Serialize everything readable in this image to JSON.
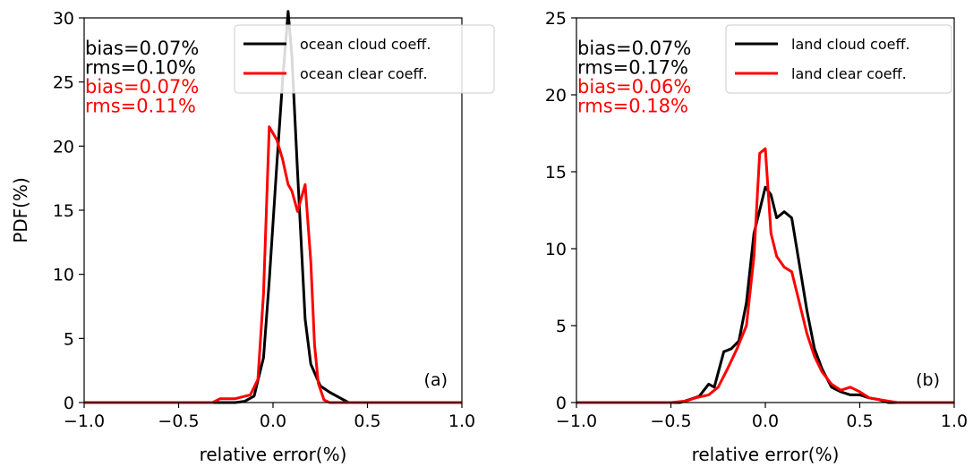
{
  "chart_data": [
    {
      "type": "line",
      "panel_label": "(a)",
      "xlabel": "relative error(%)",
      "ylabel": "PDF(%)",
      "xlim": [
        -1.0,
        1.0
      ],
      "ylim": [
        0,
        30
      ],
      "xticks": [
        "−1.0",
        "−0.5",
        "0.0",
        "0.5",
        "1.0"
      ],
      "yticks": [
        "0",
        "5",
        "10",
        "15",
        "20",
        "25",
        "30"
      ],
      "grid": false,
      "legend_position": "top-right",
      "annotations": [
        {
          "text": "bias=0.07%",
          "color": "#000000"
        },
        {
          "text": "rms=0.10%",
          "color": "#000000"
        },
        {
          "text": "bias=0.07%",
          "color": "#ff0000"
        },
        {
          "text": "rms=0.11%",
          "color": "#ff0000"
        }
      ],
      "series": [
        {
          "name": "ocean cloud coeff.",
          "color": "#000000",
          "x": [
            -1.0,
            -0.3,
            -0.2,
            -0.15,
            -0.1,
            -0.05,
            -0.02,
            0.02,
            0.05,
            0.08,
            0.1,
            0.13,
            0.17,
            0.2,
            0.25,
            0.3,
            0.35,
            0.4,
            1.0
          ],
          "y": [
            0.0,
            0.0,
            0.0,
            0.1,
            0.5,
            3.5,
            9.5,
            18.5,
            25.0,
            30.5,
            27.0,
            18.0,
            6.5,
            3.0,
            1.3,
            0.8,
            0.4,
            0.0,
            0.0
          ]
        },
        {
          "name": "ocean clear coeff.",
          "color": "#ff0000",
          "x": [
            -1.0,
            -0.32,
            -0.28,
            -0.2,
            -0.12,
            -0.08,
            -0.05,
            -0.02,
            0.02,
            0.05,
            0.08,
            0.1,
            0.13,
            0.17,
            0.2,
            0.22,
            0.24,
            0.27,
            0.3,
            1.0
          ],
          "y": [
            0.0,
            0.0,
            0.3,
            0.3,
            0.6,
            1.8,
            8.5,
            21.5,
            20.5,
            19.0,
            17.0,
            16.5,
            14.9,
            17.0,
            11.0,
            4.5,
            1.5,
            0.2,
            0.0,
            0.0
          ]
        }
      ]
    },
    {
      "type": "line",
      "panel_label": "(b)",
      "xlabel": "relative error(%)",
      "ylabel": "",
      "xlim": [
        -1.0,
        1.0
      ],
      "ylim": [
        0,
        25
      ],
      "xticks": [
        "−1.0",
        "−0.5",
        "0.0",
        "0.5",
        "1.0"
      ],
      "yticks": [
        "0",
        "5",
        "10",
        "15",
        "20",
        "25"
      ],
      "grid": false,
      "legend_position": "top-right",
      "annotations": [
        {
          "text": "bias=0.07%",
          "color": "#000000"
        },
        {
          "text": "rms=0.17%",
          "color": "#000000"
        },
        {
          "text": "bias=0.06%",
          "color": "#ff0000"
        },
        {
          "text": "rms=0.18%",
          "color": "#ff0000"
        }
      ],
      "series": [
        {
          "name": "land cloud coeff.",
          "color": "#000000",
          "x": [
            -1.0,
            -0.45,
            -0.4,
            -0.35,
            -0.3,
            -0.27,
            -0.22,
            -0.18,
            -0.14,
            -0.1,
            -0.06,
            -0.03,
            0.0,
            0.03,
            0.06,
            0.1,
            0.14,
            0.18,
            0.22,
            0.26,
            0.3,
            0.35,
            0.4,
            0.45,
            0.5,
            0.55,
            0.6,
            0.65,
            1.0
          ],
          "y": [
            0.0,
            0.0,
            0.2,
            0.4,
            1.2,
            1.0,
            3.3,
            3.5,
            4.0,
            6.5,
            11.0,
            12.5,
            14.0,
            13.5,
            12.0,
            12.4,
            12.0,
            9.0,
            6.0,
            3.5,
            2.2,
            1.0,
            0.7,
            0.5,
            0.5,
            0.3,
            0.2,
            0.0,
            0.0
          ]
        },
        {
          "name": "land clear coeff.",
          "color": "#ff0000",
          "x": [
            -1.0,
            -0.7,
            -0.5,
            -0.42,
            -0.37,
            -0.3,
            -0.25,
            -0.2,
            -0.15,
            -0.1,
            -0.06,
            -0.03,
            0.0,
            0.03,
            0.06,
            0.1,
            0.14,
            0.18,
            0.22,
            0.26,
            0.3,
            0.35,
            0.4,
            0.45,
            0.5,
            0.55,
            0.6,
            0.65,
            0.7,
            1.0
          ],
          "y": [
            0.0,
            0.0,
            0.0,
            0.1,
            0.3,
            0.5,
            1.0,
            2.2,
            3.5,
            5.0,
            9.5,
            16.2,
            16.5,
            11.0,
            9.5,
            8.8,
            8.5,
            6.5,
            4.5,
            3.0,
            2.0,
            1.2,
            0.8,
            1.0,
            0.7,
            0.3,
            0.2,
            0.1,
            0.0,
            0.0
          ]
        }
      ]
    }
  ]
}
